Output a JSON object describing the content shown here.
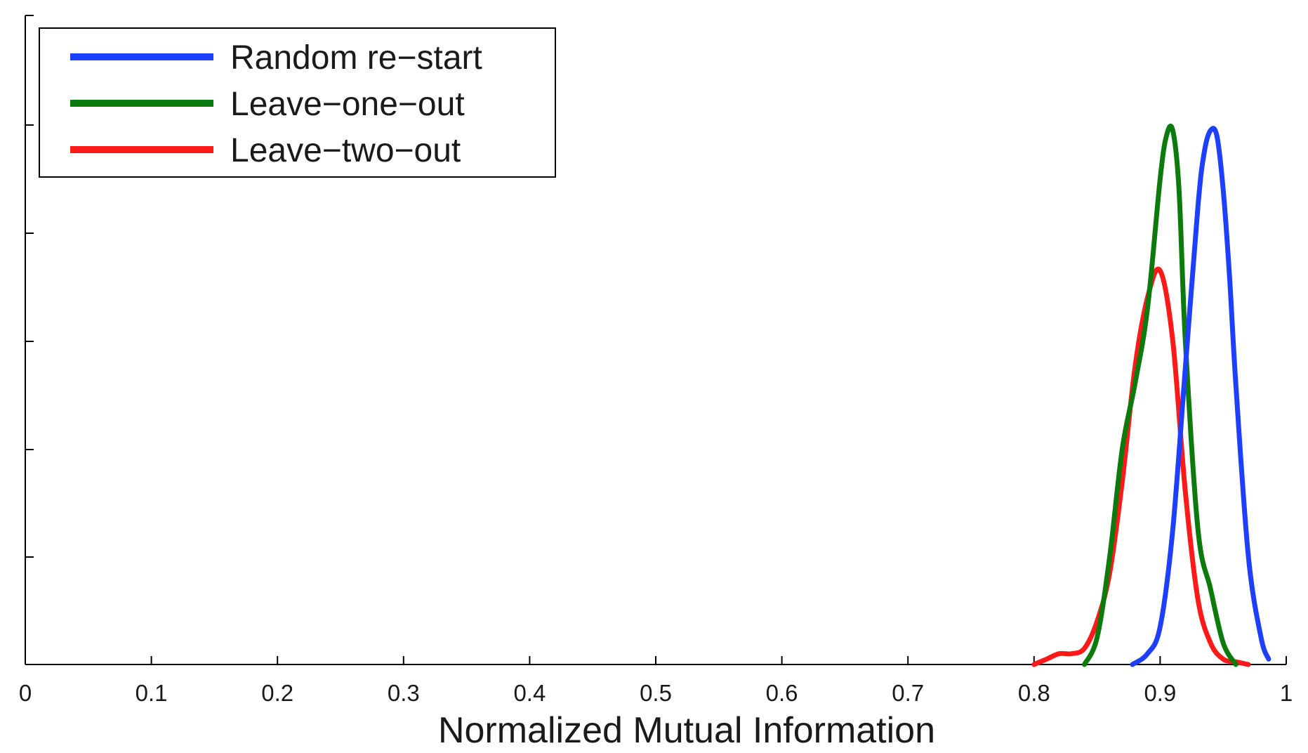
{
  "chart_data": {
    "type": "line",
    "title": "",
    "xlabel": "Normalized Mutual Information",
    "ylabel": "",
    "xlim": [
      0,
      1
    ],
    "ylim": [
      0,
      1
    ],
    "x_ticks": [
      "0",
      "0.1",
      "0.2",
      "0.3",
      "0.4",
      "0.5",
      "0.6",
      "0.7",
      "0.8",
      "0.9",
      "1"
    ],
    "y_ticks_labeled": false,
    "grid": false,
    "legend_position": "top-left",
    "series": [
      {
        "name": "Random re−start",
        "color": "#1f3fff",
        "x": [
          0.878,
          0.89,
          0.9,
          0.91,
          0.92,
          0.93,
          0.935,
          0.94,
          0.945,
          0.95,
          0.955,
          0.96,
          0.97,
          0.98,
          0.986
        ],
        "y": [
          0.0,
          0.02,
          0.07,
          0.25,
          0.55,
          0.85,
          0.95,
          0.99,
          0.98,
          0.88,
          0.72,
          0.52,
          0.2,
          0.05,
          0.01
        ]
      },
      {
        "name": "Leave−one−out",
        "color": "#0c7a0c",
        "x": [
          0.84,
          0.85,
          0.86,
          0.87,
          0.88,
          0.89,
          0.9,
          0.905,
          0.91,
          0.915,
          0.92,
          0.93,
          0.94,
          0.95,
          0.96
        ],
        "y": [
          0.0,
          0.05,
          0.2,
          0.4,
          0.52,
          0.66,
          0.9,
          0.98,
          0.99,
          0.88,
          0.6,
          0.25,
          0.14,
          0.04,
          0.0
        ]
      },
      {
        "name": "Leave−two−out",
        "color": "#ff1a1a",
        "x": [
          0.8,
          0.81,
          0.82,
          0.83,
          0.84,
          0.85,
          0.86,
          0.87,
          0.88,
          0.89,
          0.9,
          0.91,
          0.92,
          0.93,
          0.94,
          0.95,
          0.96,
          0.97
        ],
        "y": [
          0.0,
          0.01,
          0.02,
          0.02,
          0.03,
          0.08,
          0.17,
          0.34,
          0.55,
          0.68,
          0.73,
          0.6,
          0.32,
          0.12,
          0.04,
          0.01,
          0.005,
          0.0
        ]
      }
    ]
  }
}
